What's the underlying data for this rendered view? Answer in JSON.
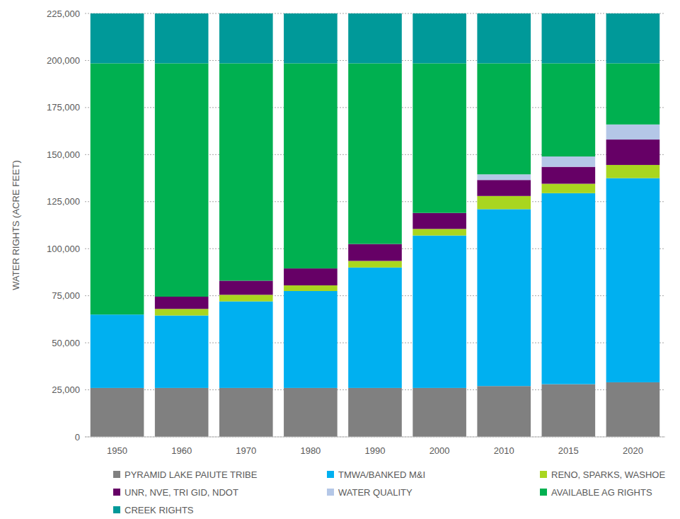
{
  "chart_data": {
    "type": "bar",
    "stacked": true,
    "grid": true,
    "legend": "bottom",
    "y_label": "WATER RIGHTS (ACRE FEET)",
    "categories": [
      "1950",
      "1960",
      "1970",
      "1980",
      "1990",
      "2000",
      "2010",
      "2015",
      "2020"
    ],
    "ylim": [
      0,
      225000
    ],
    "yticks": [
      0,
      {
        "value": 25000,
        "label": "25,000"
      },
      {
        "value": 50000,
        "label": "50,000"
      },
      {
        "value": 75000,
        "label": "75,000"
      },
      {
        "value": 100000,
        "label": "100,000"
      },
      {
        "value": 125000,
        "label": "125,000"
      },
      {
        "value": 150000,
        "label": "150,000"
      },
      {
        "value": 175000,
        "label": "175,000"
      },
      {
        "value": 200000,
        "label": "200,000"
      },
      {
        "value": 225000,
        "label": "225,000"
      }
    ],
    "series": [
      {
        "name": "PYRAMID LAKE PAIUTE TRIBE",
        "color": "#808080",
        "values": [
          26000,
          26000,
          26000,
          26000,
          26000,
          26000,
          27000,
          28000,
          29000
        ]
      },
      {
        "name": "TMWA/BANKED M&I",
        "color": "#00b0f0",
        "values": [
          39000,
          38500,
          46000,
          51500,
          64000,
          81000,
          94000,
          101500,
          108500
        ]
      },
      {
        "name": "RENO, SPARKS, WASHOE",
        "color": "#a9d61f",
        "values": [
          0,
          3500,
          3500,
          3000,
          3500,
          3500,
          7000,
          5000,
          7000
        ]
      },
      {
        "name": "UNR, NVE, TRI GID, NDOT",
        "color": "#660066",
        "values": [
          0,
          6500,
          7500,
          9000,
          9000,
          8500,
          8500,
          9000,
          13500
        ]
      },
      {
        "name": "WATER QUALITY",
        "color": "#b4c7e7",
        "values": [
          0,
          0,
          0,
          0,
          0,
          0,
          3000,
          5500,
          8000
        ]
      },
      {
        "name": "AVAILABLE AG RIGHTS",
        "color": "#00b050",
        "values": [
          133500,
          124000,
          115500,
          109000,
          96000,
          79500,
          59000,
          49500,
          32500
        ]
      },
      {
        "name": "CREEK RIGHTS",
        "color": "#009999",
        "values": [
          26500,
          26500,
          26500,
          26500,
          26500,
          26500,
          26500,
          26500,
          26500
        ]
      }
    ]
  }
}
